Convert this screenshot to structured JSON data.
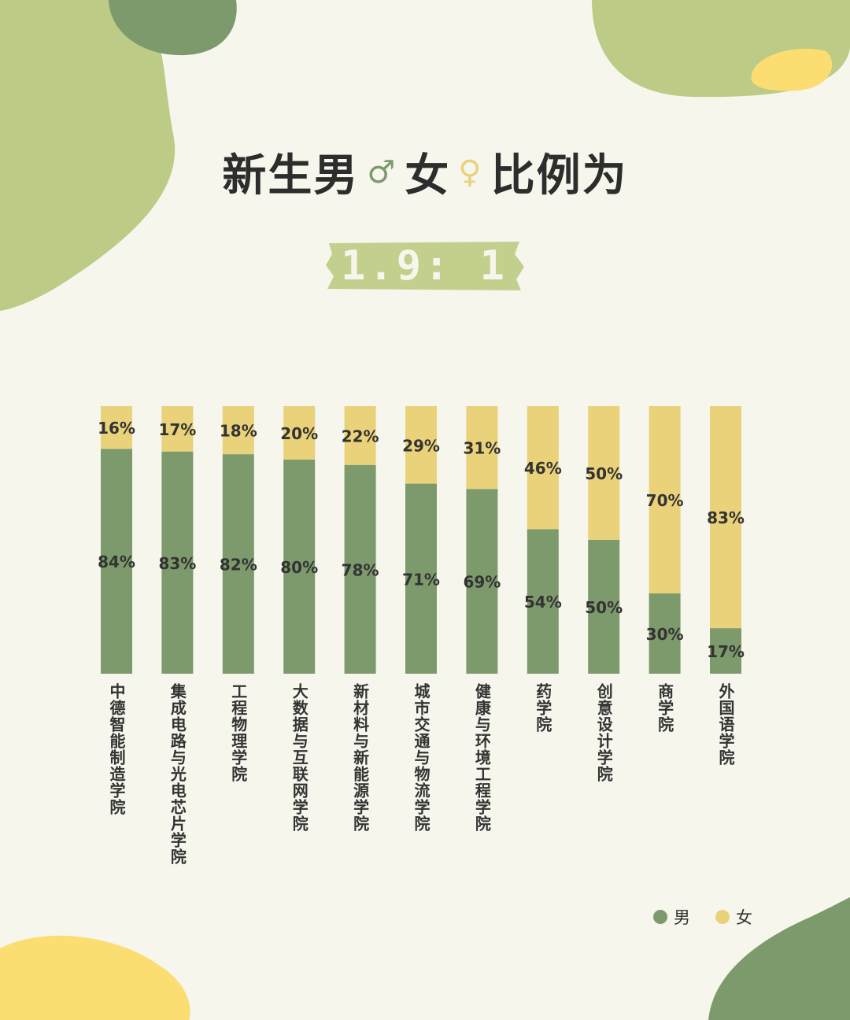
{
  "header": {
    "title_part1": "新生男",
    "male_symbol": "♂",
    "title_part2": "女",
    "female_symbol": "♀",
    "title_part3": "比例为",
    "ratio": "1.9: 1"
  },
  "colors": {
    "male": "#7d9a6c",
    "female": "#e9d27a",
    "background": "#f6f6ec",
    "blob_light_green": "#bccb85",
    "blob_dark_green": "#7d9a6c",
    "blob_yellow": "#fbdd72",
    "ratio_badge": "#c3cf8c"
  },
  "legend": {
    "male_label": "男",
    "female_label": "女"
  },
  "chart_data": {
    "type": "bar",
    "stacked": true,
    "percent": true,
    "categories": [
      "中德智能制造学院",
      "集成电路与光电芯片学院",
      "工程物理学院",
      "大数据与互联网学院",
      "新材料与新能源学院",
      "城市交通与物流学院",
      "健康与环境工程学院",
      "药学院",
      "创意设计学院",
      "商学院",
      "外国语学院"
    ],
    "series": [
      {
        "name": "男",
        "values": [
          84,
          83,
          82,
          80,
          78,
          71,
          69,
          54,
          50,
          30,
          17
        ]
      },
      {
        "name": "女",
        "values": [
          16,
          17,
          18,
          20,
          22,
          29,
          31,
          46,
          50,
          70,
          83
        ]
      }
    ],
    "ylim": [
      0,
      100
    ],
    "legend_position": "bottom-right",
    "grid": false
  }
}
